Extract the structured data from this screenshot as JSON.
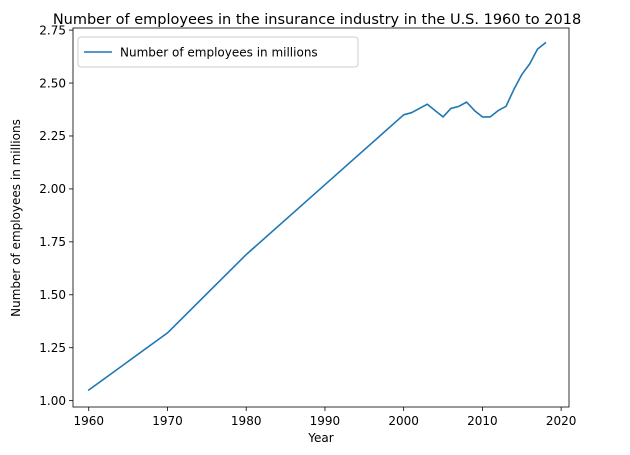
{
  "chart_data": {
    "type": "line",
    "title": "Number of employees in the insurance industry in the U.S. 1960 to 2018",
    "xlabel": "Year",
    "ylabel": "Number of employees in millions",
    "xlim": [
      1958,
      2021
    ],
    "ylim": [
      0.97,
      2.76
    ],
    "xticks": [
      1960,
      1970,
      1980,
      1990,
      2000,
      2010,
      2020
    ],
    "yticks": [
      1.0,
      1.25,
      1.5,
      1.75,
      2.0,
      2.25,
      2.5,
      2.75
    ],
    "ytick_labels": [
      "1.00",
      "1.25",
      "1.50",
      "1.75",
      "2.00",
      "2.25",
      "2.50",
      "2.75"
    ],
    "grid": false,
    "legend_position": "top-left",
    "series": [
      {
        "name": "Number of employees in millions",
        "color": "#1f77b4",
        "x": [
          1960,
          1970,
          1980,
          1990,
          2000,
          2001,
          2002,
          2003,
          2004,
          2005,
          2006,
          2007,
          2008,
          2009,
          2010,
          2011,
          2012,
          2013,
          2014,
          2015,
          2016,
          2017,
          2018
        ],
        "y": [
          1.05,
          1.32,
          1.69,
          2.02,
          2.35,
          2.36,
          2.38,
          2.4,
          2.37,
          2.34,
          2.38,
          2.39,
          2.41,
          2.37,
          2.34,
          2.34,
          2.37,
          2.39,
          2.47,
          2.54,
          2.59,
          2.66,
          2.69
        ]
      }
    ]
  }
}
